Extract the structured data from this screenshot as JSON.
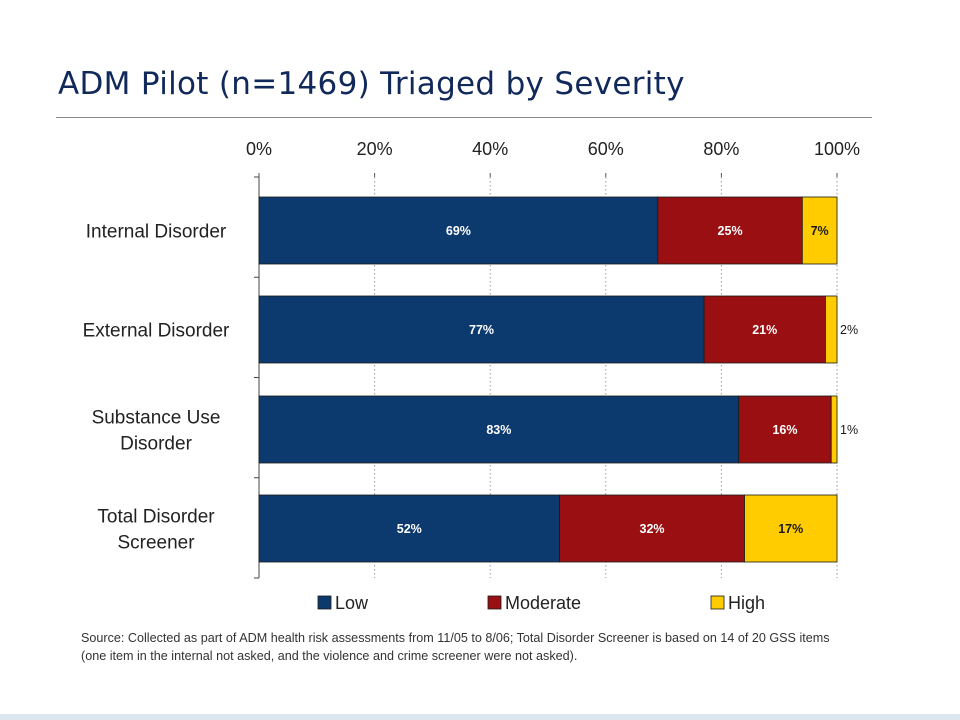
{
  "slide": {
    "title": "ADM Pilot (n=1469) Triaged by Severity",
    "source_note": "Source: Collected as part of ADM health risk assessments from 11/05 to 8/06; Total Disorder Screener is based on 14 of 20 GSS items (one item in the internal not asked, and the violence and crime screener were not asked)."
  },
  "chart_data": {
    "type": "bar",
    "orientation": "horizontal",
    "stacked": true,
    "title": "",
    "xlabel": "",
    "ylabel": "",
    "xlim": [
      0,
      100
    ],
    "x_ticks": [
      "0%",
      "20%",
      "40%",
      "60%",
      "80%",
      "100%"
    ],
    "x_axis_position": "top",
    "grid": "vertical dotted",
    "categories": [
      [
        "Internal Disorder"
      ],
      [
        "External Disorder"
      ],
      [
        "Substance Use",
        "Disorder"
      ],
      [
        "Total Disorder",
        "Screener"
      ]
    ],
    "series": [
      {
        "name": "Low",
        "color": "#0d3a6e",
        "label_color": "#ffffff",
        "values": [
          69,
          77,
          83,
          52
        ],
        "labels": [
          "69%",
          "77%",
          "83%",
          "52%"
        ]
      },
      {
        "name": "Moderate",
        "color": "#990f12",
        "label_color": "#ffffff",
        "values": [
          25,
          21,
          16,
          32
        ],
        "labels": [
          "25%",
          "21%",
          "16%",
          "32%"
        ]
      },
      {
        "name": "High",
        "color": "#ffcc00",
        "label_color": "#1a1a1a",
        "values": [
          7,
          2,
          1,
          17
        ],
        "labels": [
          "7%",
          "2%",
          "1%",
          "17%"
        ],
        "label_outside": [
          false,
          true,
          true,
          false
        ]
      }
    ],
    "legend_position": "bottom"
  }
}
